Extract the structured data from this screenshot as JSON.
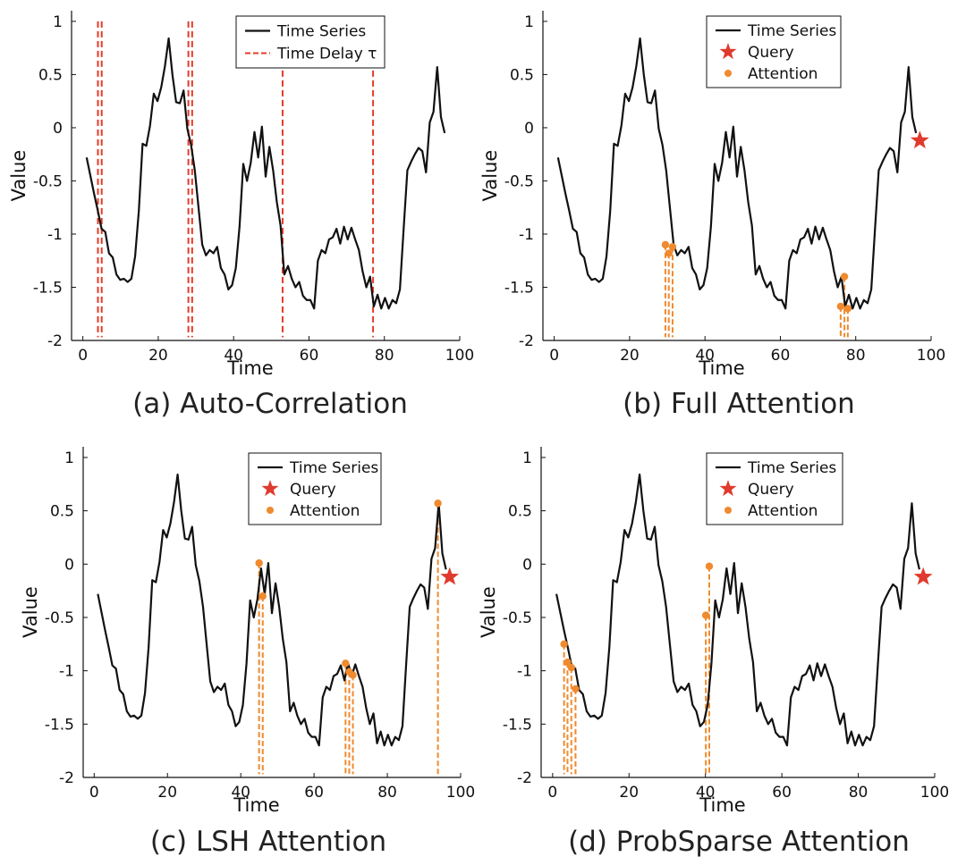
{
  "colors": {
    "series": "#111111",
    "delay": "#e53b2a",
    "attention": "#ef8a2e",
    "query": "#e03a2e"
  },
  "series_values": [
    -0.28,
    -0.45,
    -0.62,
    -0.78,
    -0.95,
    -0.98,
    -1.18,
    -1.22,
    -1.38,
    -1.43,
    -1.42,
    -1.45,
    -1.42,
    -1.21,
    -0.78,
    -0.15,
    -0.17,
    0.02,
    0.32,
    0.25,
    0.38,
    0.58,
    0.84,
    0.5,
    0.24,
    0.23,
    0.35,
    -0.01,
    -0.16,
    -0.4,
    -0.75,
    -1.1,
    -1.2,
    -1.15,
    -1.18,
    -1.12,
    -1.32,
    -1.38,
    -1.52,
    -1.48,
    -1.32,
    -0.93,
    -0.34,
    -0.5,
    -0.33,
    -0.04,
    -0.28,
    0.01,
    -0.46,
    -0.18,
    -0.4,
    -0.7,
    -0.92,
    -1.38,
    -1.3,
    -1.42,
    -1.5,
    -1.45,
    -1.58,
    -1.62,
    -1.62,
    -1.7,
    -1.25,
    -1.15,
    -1.18,
    -1.05,
    -1.03,
    -0.95,
    -1.09,
    -0.93,
    -1.05,
    -0.94,
    -1.05,
    -1.15,
    -1.35,
    -1.5,
    -1.4,
    -1.68,
    -1.57,
    -1.7,
    -1.6,
    -1.7,
    -1.62,
    -1.65,
    -1.52,
    -0.95,
    -0.4,
    -0.32,
    -0.25,
    -0.19,
    -0.22,
    -0.42,
    0.05,
    0.15,
    0.57,
    0.1,
    -0.05
  ],
  "chart_data": [
    {
      "type": "line",
      "caption": "(a) Auto-Correlation",
      "xlabel": "Time",
      "ylabel": "Value",
      "xlim": [
        -3,
        100
      ],
      "ylim": [
        -2,
        1.1
      ],
      "xticks": [
        "0",
        "20",
        "40",
        "60",
        "80",
        "100"
      ],
      "yticks": [
        "1",
        "0.5",
        "0",
        "-0.5",
        "-1",
        "-1.5",
        "-2"
      ],
      "legend": [
        "Time Series",
        "Time Delay τ"
      ],
      "legend_position": "top-right",
      "series": [
        {
          "name": "Time Series",
          "x_start": 1,
          "x_end": 96
        }
      ],
      "time_delays": [
        4,
        5,
        28,
        29,
        53,
        77
      ]
    },
    {
      "type": "line",
      "caption": "(b) Full Attention",
      "xlabel": "Time",
      "ylabel": "Value",
      "xlim": [
        -3,
        100
      ],
      "ylim": [
        -2,
        1.1
      ],
      "xticks": [
        "0",
        "20",
        "40",
        "60",
        "80",
        "100"
      ],
      "yticks": [
        "1",
        "0.5",
        "0",
        "-0.5",
        "-1",
        "-1.5",
        "-2"
      ],
      "legend": [
        "Time Series",
        "Query",
        "Attention"
      ],
      "legend_position": "top-right",
      "series": [
        {
          "name": "Time Series",
          "x_start": 1,
          "x_end": 96
        }
      ],
      "query": {
        "x": 97,
        "y": -0.12
      },
      "attention": [
        {
          "x": 29.5,
          "y": -1.1
        },
        {
          "x": 30.4,
          "y": -1.18
        },
        {
          "x": 31.4,
          "y": -1.12
        },
        {
          "x": 76.0,
          "y": -1.68
        },
        {
          "x": 77.0,
          "y": -1.4
        },
        {
          "x": 77.9,
          "y": -1.7
        }
      ]
    },
    {
      "type": "line",
      "caption": "(c) LSH Attention",
      "xlabel": "Time",
      "ylabel": "Value",
      "xlim": [
        -3,
        100
      ],
      "ylim": [
        -2,
        1.1
      ],
      "xticks": [
        "0",
        "20",
        "40",
        "60",
        "80",
        "100"
      ],
      "yticks": [
        "1",
        "0.5",
        "0",
        "-0.5",
        "-1",
        "-1.5",
        "-2"
      ],
      "legend": [
        "Time Series",
        "Query",
        "Attention"
      ],
      "legend_position": "top-right",
      "series": [
        {
          "name": "Time Series",
          "x_start": 1,
          "x_end": 96
        }
      ],
      "query": {
        "x": 97,
        "y": -0.12
      },
      "attention": [
        {
          "x": 45.0,
          "y": 0.01
        },
        {
          "x": 46.0,
          "y": -0.3
        },
        {
          "x": 68.6,
          "y": -0.93
        },
        {
          "x": 69.6,
          "y": -1.01
        },
        {
          "x": 70.6,
          "y": -1.04
        },
        {
          "x": 93.8,
          "y": 0.57
        }
      ]
    },
    {
      "type": "line",
      "caption": "(d) ProbSparse Attention",
      "xlabel": "Time",
      "ylabel": "Value",
      "xlim": [
        -3,
        100
      ],
      "ylim": [
        -2,
        1.1
      ],
      "xticks": [
        "0",
        "20",
        "40",
        "60",
        "80",
        "100"
      ],
      "yticks": [
        "1",
        "0.5",
        "0",
        "-0.5",
        "-1",
        "-1.5",
        "-2"
      ],
      "legend": [
        "Time Series",
        "Query",
        "Attention"
      ],
      "legend_position": "top-right",
      "series": [
        {
          "name": "Time Series",
          "x_start": 1,
          "x_end": 96
        }
      ],
      "query": {
        "x": 97,
        "y": -0.12
      },
      "attention": [
        {
          "x": 3.0,
          "y": -0.75
        },
        {
          "x": 3.9,
          "y": -0.92
        },
        {
          "x": 4.9,
          "y": -0.97
        },
        {
          "x": 6.0,
          "y": -1.17
        },
        {
          "x": 40.1,
          "y": -0.48
        },
        {
          "x": 41.0,
          "y": -0.02
        }
      ]
    }
  ]
}
